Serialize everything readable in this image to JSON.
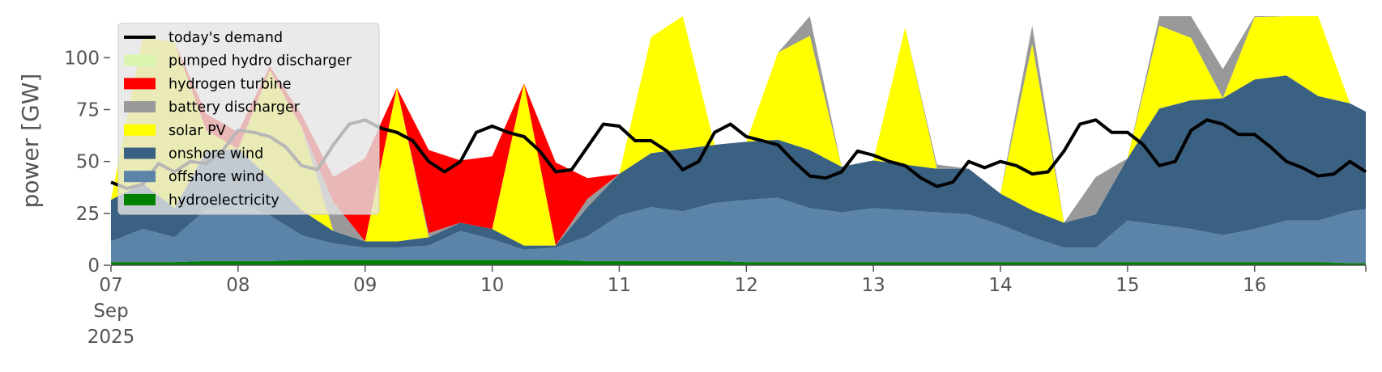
{
  "chart_data": {
    "type": "area",
    "title": "",
    "xlabel": "",
    "ylabel": "power [GW]",
    "ylim": [
      0,
      120
    ],
    "xlim": [
      0,
      237
    ],
    "x_unit": "hours since 2025-09-07 00:00",
    "y_ticks": [
      0,
      25,
      50,
      75,
      100
    ],
    "x_ticks": [
      {
        "x": 0,
        "lines": [
          "07",
          "Sep",
          "2025"
        ]
      },
      {
        "x": 24,
        "lines": [
          "08"
        ]
      },
      {
        "x": 48,
        "lines": [
          "09"
        ]
      },
      {
        "x": 72,
        "lines": [
          "10"
        ]
      },
      {
        "x": 96,
        "lines": [
          "11"
        ]
      },
      {
        "x": 120,
        "lines": [
          "12"
        ]
      },
      {
        "x": 144,
        "lines": [
          "13"
        ]
      },
      {
        "x": 168,
        "lines": [
          "14"
        ]
      },
      {
        "x": 192,
        "lines": [
          "15"
        ]
      },
      {
        "x": 216,
        "lines": [
          "16"
        ]
      }
    ],
    "grid": false,
    "legend_position": "top-left",
    "legend": [
      {
        "label": "today's demand",
        "color": "#000000",
        "kind": "line"
      },
      {
        "label": "pumped hydro discharger",
        "color": "#d9f5b0",
        "kind": "patch"
      },
      {
        "label": "hydrogen turbine",
        "color": "#ff0000",
        "kind": "patch"
      },
      {
        "label": "battery discharger",
        "color": "#999999",
        "kind": "patch"
      },
      {
        "label": "solar PV",
        "color": "#ffff00",
        "kind": "patch"
      },
      {
        "label": "onshore wind",
        "color": "#3b6182",
        "kind": "patch"
      },
      {
        "label": "offshore wind",
        "color": "#5c84a8",
        "kind": "patch"
      },
      {
        "label": "hydroelectricity",
        "color": "#008000",
        "kind": "patch"
      }
    ],
    "stack_order": [
      "hydroelectricity",
      "offshore wind",
      "onshore wind",
      "solar PV",
      "battery discharger",
      "hydrogen turbine",
      "pumped hydro discharger"
    ],
    "x": [
      0,
      6,
      12,
      18,
      24,
      30,
      36,
      42,
      48,
      54,
      60,
      66,
      72,
      78,
      84,
      90,
      96,
      102,
      108,
      114,
      120,
      126,
      132,
      138,
      144,
      150,
      156,
      162,
      168,
      174,
      180,
      186,
      192,
      198,
      204,
      210,
      216,
      222,
      228,
      234,
      237
    ],
    "series": [
      {
        "name": "hydroelectricity",
        "values": [
          1.5,
          1.5,
          1.5,
          2,
          2,
          2,
          2.5,
          2.5,
          2.5,
          2.5,
          2.5,
          2.5,
          2.5,
          2.5,
          2.5,
          2,
          2,
          2,
          2,
          2,
          1.5,
          1.5,
          1.5,
          1.5,
          1.5,
          1.5,
          1.5,
          1.5,
          1.5,
          1.5,
          1.5,
          1.5,
          1.5,
          1.5,
          1.5,
          1.5,
          1.5,
          1.5,
          1.5,
          1,
          1
        ]
      },
      {
        "name": "offshore wind",
        "values": [
          10,
          16,
          12,
          25,
          28,
          22,
          12,
          8,
          6,
          6,
          7,
          14,
          10,
          5,
          6,
          12,
          22,
          26,
          24,
          28,
          30,
          31,
          26,
          24,
          26,
          25,
          24,
          23,
          18,
          12,
          7,
          7,
          20,
          18,
          16,
          13,
          16,
          20,
          20,
          25,
          26
        ]
      },
      {
        "name": "onshore wind",
        "values": [
          20,
          22,
          14,
          28,
          26,
          18,
          12,
          6,
          3,
          3,
          4,
          4,
          5,
          2,
          1,
          14,
          20,
          26,
          30,
          28,
          28,
          28,
          28,
          22,
          23,
          22,
          21,
          22,
          15,
          13,
          12,
          16,
          30,
          56,
          62,
          66,
          72,
          70,
          60,
          52,
          47
        ]
      },
      {
        "name": "solar PV",
        "values": [
          0,
          70,
          80,
          10,
          0,
          52,
          40,
          0,
          0,
          74,
          0,
          0,
          0,
          78,
          0,
          0,
          0,
          56,
          125,
          0,
          0,
          42,
          55,
          0,
          0,
          66,
          0,
          0,
          0,
          80,
          0,
          0,
          0,
          40,
          30,
          0,
          30,
          50,
          40,
          0,
          0
        ]
      },
      {
        "name": "battery discharger",
        "values": [
          0,
          0,
          0,
          0,
          0,
          0,
          0,
          14,
          0,
          0,
          2,
          0,
          0,
          0,
          0,
          4,
          0,
          0,
          0,
          0,
          0,
          0,
          12,
          0,
          0,
          0,
          2,
          0,
          0,
          9,
          0,
          18,
          0,
          28,
          12,
          14,
          16,
          0,
          0,
          0,
          0
        ]
      },
      {
        "name": "hydrogen turbine",
        "values": [
          0,
          0,
          0,
          8,
          8,
          2,
          6,
          12,
          40,
          0,
          40,
          30,
          35,
          0,
          40,
          10,
          0,
          0,
          0,
          0,
          0,
          0,
          0,
          0,
          0,
          0,
          0,
          0,
          0,
          0,
          0,
          0,
          0,
          0,
          0,
          0,
          0,
          0,
          0,
          0,
          0
        ]
      },
      {
        "name": "pumped hydro discharger",
        "values": [
          0,
          0,
          0,
          0,
          0,
          0,
          0,
          0,
          0,
          0,
          0,
          0,
          0,
          0,
          0,
          0,
          0,
          0,
          0,
          0,
          0,
          0,
          0,
          0,
          0,
          0,
          0,
          0,
          0,
          0,
          0,
          0,
          0,
          0,
          0,
          0,
          0,
          0,
          0,
          0,
          0
        ]
      }
    ],
    "demand": {
      "name": "today's demand",
      "x": [
        0,
        3,
        6,
        9,
        12,
        15,
        18,
        21,
        24,
        27,
        30,
        33,
        36,
        39,
        42,
        45,
        48,
        51,
        54,
        57,
        60,
        63,
        66,
        69,
        72,
        75,
        78,
        81,
        84,
        87,
        90,
        93,
        96,
        99,
        102,
        105,
        108,
        111,
        114,
        117,
        120,
        123,
        126,
        129,
        132,
        135,
        138,
        141,
        144,
        147,
        150,
        153,
        156,
        159,
        162,
        165,
        168,
        171,
        174,
        177,
        180,
        183,
        186,
        189,
        192,
        195,
        198,
        201,
        204,
        207,
        210,
        213,
        216,
        219,
        222,
        225,
        228,
        231,
        234,
        237
      ],
      "values": [
        40,
        37,
        39,
        49,
        45,
        50,
        49,
        55,
        65,
        64,
        62,
        57,
        48,
        46,
        58,
        68,
        70,
        66,
        64,
        60,
        50,
        45,
        50,
        64,
        67,
        64,
        62,
        55,
        45,
        46,
        57,
        68,
        67,
        60,
        60,
        55,
        46,
        50,
        64,
        68,
        62,
        60,
        58,
        50,
        43,
        42,
        45,
        55,
        53,
        50,
        48,
        42,
        38,
        40,
        50,
        47,
        50,
        48,
        44,
        45,
        55,
        68,
        70,
        64,
        64,
        58,
        48,
        50,
        65,
        70,
        68,
        63,
        63,
        57,
        50,
        47,
        43,
        44,
        50,
        45
      ]
    }
  }
}
